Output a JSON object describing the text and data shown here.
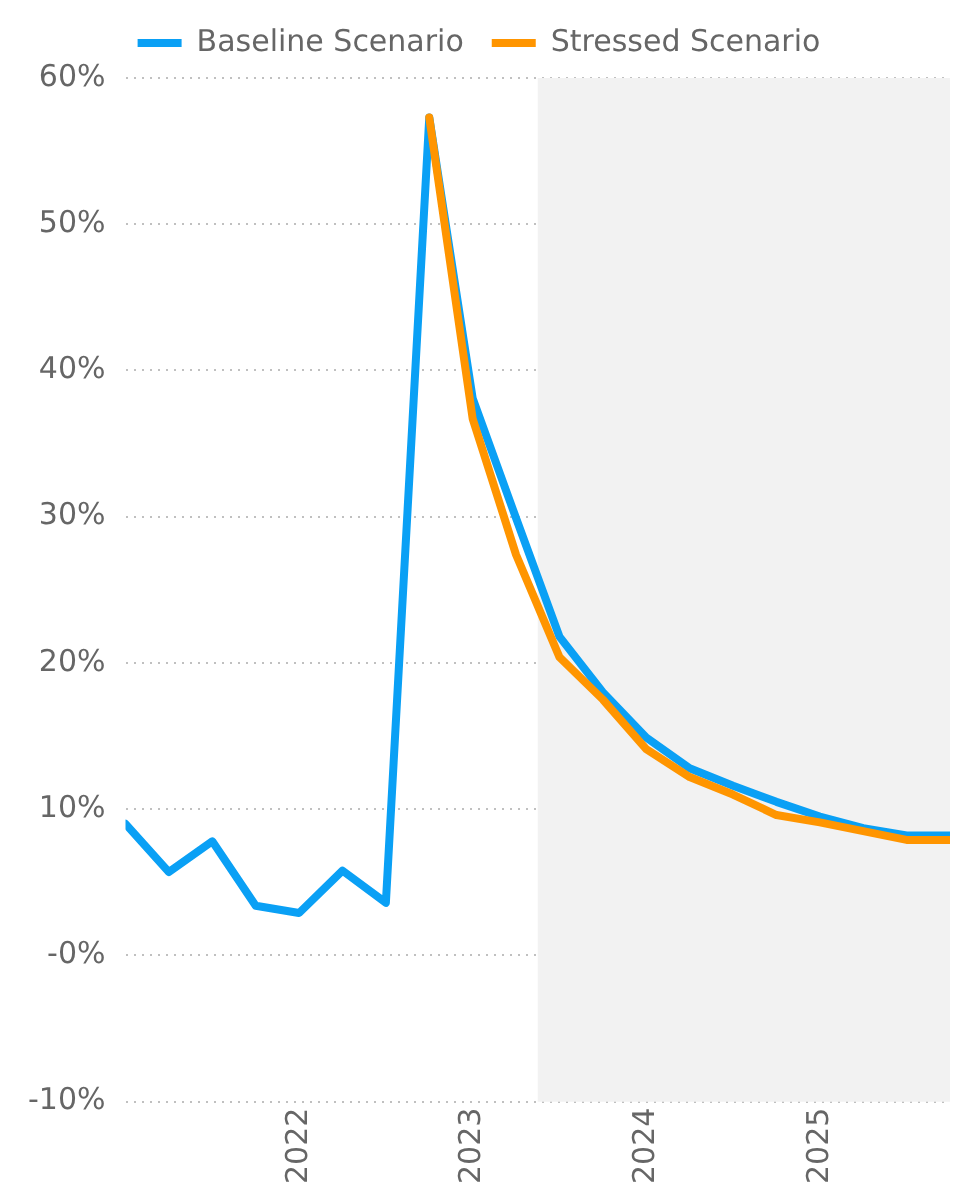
{
  "chart_data": {
    "type": "line",
    "x": [
      2021,
      2021.25,
      2021.5,
      2021.75,
      2022,
      2022.25,
      2022.5,
      2022.75,
      2023,
      2023.25,
      2023.5,
      2023.75,
      2024,
      2024.25,
      2024.5,
      2024.75,
      2025,
      2025.25,
      2025.5,
      2025.75
    ],
    "series": [
      {
        "name": "Stressed Scenario",
        "color": "#ff9500",
        "values": [
          null,
          null,
          null,
          null,
          null,
          null,
          null,
          57.3,
          36.7,
          27.4,
          20.4,
          17.5,
          14.1,
          12.2,
          11.0,
          9.6,
          9.1,
          8.5,
          7.9,
          7.9
        ]
      },
      {
        "name": "Baseline Scenario",
        "color": "#0aa0f5",
        "values": [
          9.0,
          5.7,
          7.8,
          3.4,
          2.9,
          5.8,
          3.6,
          57.3,
          38.1,
          29.9,
          21.8,
          18.0,
          14.9,
          12.8,
          11.6,
          10.5,
          9.5,
          8.7,
          8.2,
          8.2
        ]
      }
    ],
    "xlim": [
      2021,
      2025.75
    ],
    "xticks": [
      2022,
      2023,
      2024,
      2025
    ],
    "ylim": [
      -10,
      60
    ],
    "yticks": [
      {
        "value": -10,
        "label": "-10%"
      },
      {
        "value": 0,
        "label": "-0%"
      },
      {
        "value": 10,
        "label": "10%"
      },
      {
        "value": 20,
        "label": "20%"
      },
      {
        "value": 30,
        "label": "30%"
      },
      {
        "value": 40,
        "label": "40%"
      },
      {
        "value": 50,
        "label": "50%"
      },
      {
        "value": 60,
        "label": "60%"
      }
    ],
    "bands": [
      {
        "axis": "x",
        "from": 2023.375,
        "to": 2025.75,
        "color": "#f2f2f2"
      }
    ],
    "grid": "y",
    "legend": "top",
    "marker": "none",
    "line_style": "solid"
  }
}
